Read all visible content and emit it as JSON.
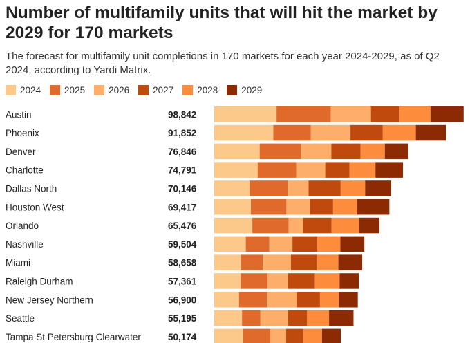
{
  "header": {
    "title": "Number of multifamily units that will hit the market by 2029 for 170 markets",
    "subtitle": "The forecast for multifamily unit completions in 170 markets for each year 2024-2029, as of Q2 2024, according to Yardi Matrix."
  },
  "colors": {
    "2024": "#fdc98a",
    "2025": "#e06a2c",
    "2026": "#fdae6b",
    "2027": "#c0490d",
    "2028": "#fd8d3c",
    "2029": "#8c2a04"
  },
  "chart_data": {
    "type": "bar",
    "orientation": "horizontal",
    "stacked": true,
    "title": "Number of multifamily units that will hit the market by 2029 for 170 markets",
    "legend_position": "top-left",
    "xlim": [
      0,
      100000
    ],
    "series_names": [
      "2024",
      "2025",
      "2026",
      "2027",
      "2028",
      "2029"
    ],
    "categories": [
      "Austin",
      "Phoenix",
      "Denver",
      "Charlotte",
      "Dallas North",
      "Houston West",
      "Orlando",
      "Nashville",
      "Miami",
      "Raleigh Durham",
      "New Jersey Northern",
      "Seattle",
      "Tampa St Petersburg Clearwater"
    ],
    "totals": [
      "98,842",
      "91,852",
      "76,846",
      "74,791",
      "70,146",
      "69,417",
      "65,476",
      "59,504",
      "58,658",
      "57,361",
      "56,900",
      "55,195",
      "50,174"
    ],
    "series": [
      {
        "name": "2024",
        "values": [
          24700,
          23400,
          18000,
          17200,
          14000,
          14500,
          15100,
          12500,
          10600,
          10500,
          9800,
          11000,
          11500
        ]
      },
      {
        "name": "2025",
        "values": [
          21500,
          14900,
          16400,
          15300,
          15100,
          14100,
          14400,
          9300,
          8600,
          10600,
          11100,
          7300,
          10700
        ]
      },
      {
        "name": "2026",
        "values": [
          15900,
          15700,
          12000,
          11500,
          8300,
          9300,
          5700,
          9200,
          11200,
          8200,
          11700,
          11000,
          6300
        ]
      },
      {
        "name": "2027",
        "values": [
          11300,
          12800,
          11600,
          9600,
          12700,
          9200,
          11300,
          9800,
          10200,
          10600,
          9300,
          7500,
          6800
        ]
      },
      {
        "name": "2028",
        "values": [
          12300,
          13100,
          9600,
          10300,
          9700,
          9600,
          11000,
          9200,
          8600,
          9800,
          7500,
          8700,
          7400
        ]
      },
      {
        "name": "2029",
        "values": [
          13142,
          11952,
          9246,
          10891,
          10346,
          12717,
          7976,
          9504,
          9458,
          7661,
          7500,
          9695,
          7474
        ]
      }
    ]
  }
}
